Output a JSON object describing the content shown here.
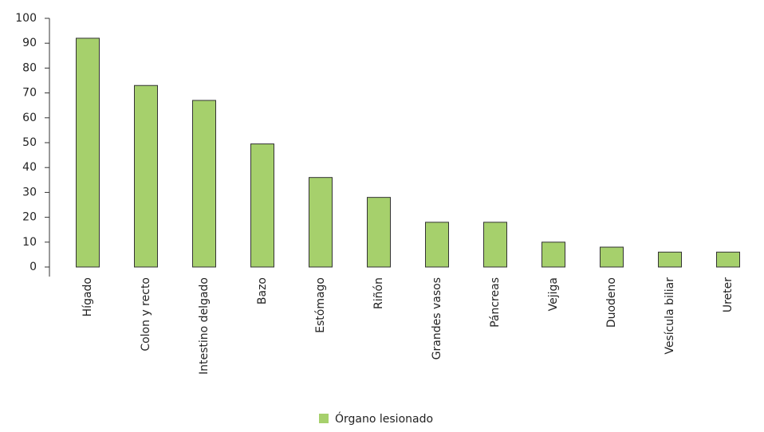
{
  "chart_data": {
    "type": "bar",
    "categories": [
      "Hígado",
      "Colon y recto",
      "Intestino delgado",
      "Bazo",
      "Estómago",
      "Riñón",
      "Grandes vasos",
      "Páncreas",
      "Vejiga",
      "Duodeno",
      "Vesícula biliar",
      "Ureter"
    ],
    "series": [
      {
        "name": "Órgano lesionado",
        "color": "#a6d06c",
        "values": [
          92,
          73,
          67,
          49.5,
          36,
          28,
          18,
          18,
          10,
          8,
          6,
          6
        ]
      }
    ],
    "ylim": [
      0,
      100
    ],
    "yticks": [
      0,
      10,
      20,
      30,
      40,
      50,
      60,
      70,
      80,
      90,
      100
    ],
    "grid": false,
    "legend": "bottom"
  }
}
